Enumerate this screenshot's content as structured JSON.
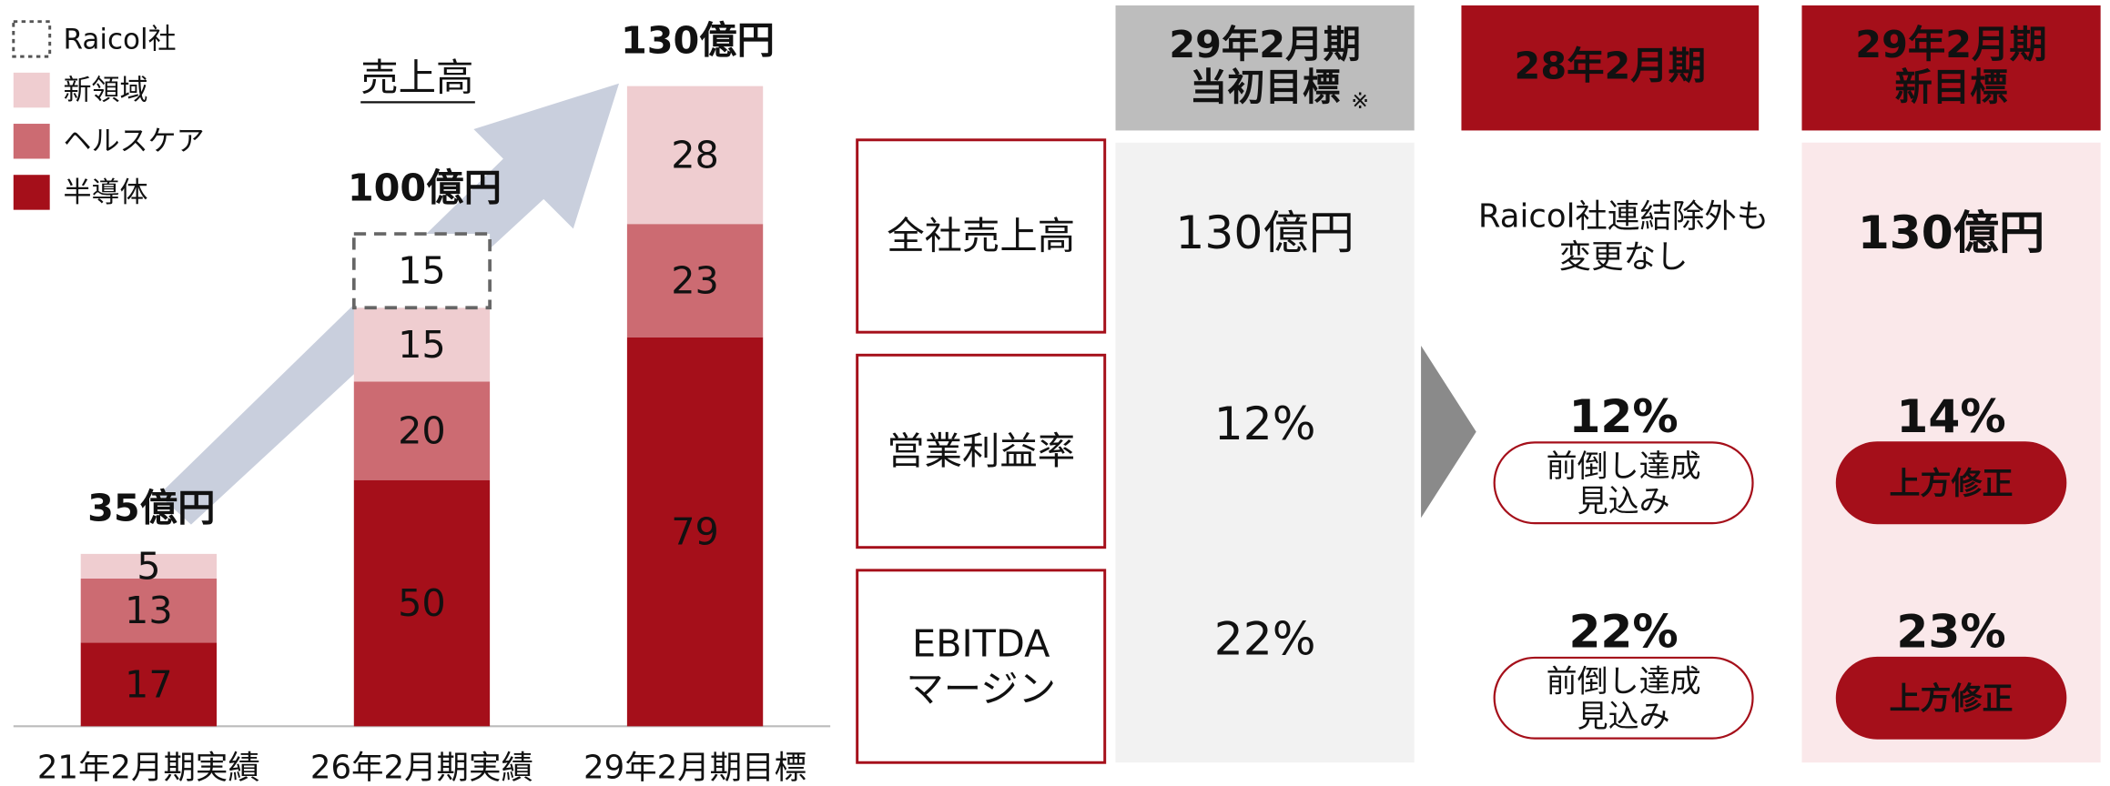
{
  "chart_data": {
    "type": "stacked_bar",
    "categories": [
      "21年2月期実績",
      "26年2月期実績",
      "29年2月期目標"
    ],
    "series": [
      {
        "name": "半導体",
        "color": "#a50f1a",
        "values": [
          17,
          50,
          79
        ]
      },
      {
        "name": "ヘルスケア",
        "color": "#cc6b72",
        "values": [
          13,
          20,
          23
        ]
      },
      {
        "name": "新領域",
        "color": "#efcdd0",
        "values": [
          5,
          15,
          28
        ]
      },
      {
        "name": "Raicol社",
        "color": "#ffffff",
        "dashed": true,
        "values": [
          null,
          15,
          null
        ]
      }
    ],
    "total_labels": [
      "35億円",
      "100億円",
      "130億円"
    ],
    "arrow_label": "売上高"
  },
  "table": {
    "headers": [
      {
        "lines": [
          "29年2月期",
          "当初目標"
        ],
        "note": "※",
        "color": "#bdbdbd",
        "text_color": "#111"
      },
      {
        "lines": [
          "28年2月期"
        ],
        "color": "#a50f1a",
        "text_color": "#fff"
      },
      {
        "lines": [
          "29年2月期",
          "新目標"
        ],
        "color": "#a50f1a",
        "text_color": "#fff"
      }
    ],
    "rows": [
      {
        "label": [
          "全社売上高"
        ],
        "cells": [
          {
            "text": [
              "130億円"
            ]
          },
          {
            "text": [
              "Raicol社連結除外も",
              "変更なし"
            ]
          },
          {
            "text": [
              "130億円"
            ],
            "bold": true
          }
        ]
      },
      {
        "label": [
          "営業利益率"
        ],
        "cells": [
          {
            "text": [
              "12%"
            ]
          },
          {
            "text": [
              "12%"
            ],
            "bold": true,
            "badge": [
              "前倒し達成",
              "見込み"
            ]
          },
          {
            "text": [
              "14%"
            ],
            "bold": true,
            "badge": [
              "上方修正"
            ],
            "badge_filled": true
          }
        ]
      },
      {
        "label": [
          "EBITDA",
          "マージン"
        ],
        "cells": [
          {
            "text": [
              "22%"
            ]
          },
          {
            "text": [
              "22%"
            ],
            "bold": true,
            "badge": [
              "前倒し達成",
              "見込み"
            ]
          },
          {
            "text": [
              "23%"
            ],
            "bold": true,
            "badge": [
              "上方修正"
            ],
            "badge_filled": true
          }
        ]
      }
    ]
  }
}
